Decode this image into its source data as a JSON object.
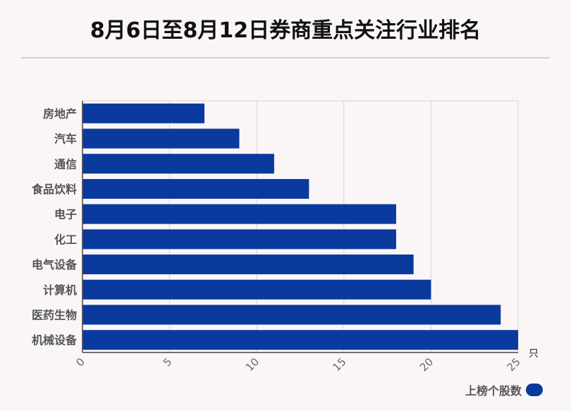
{
  "header": {
    "title": "8月6日至8月12日券商重点关注行业排名"
  },
  "chart_data": {
    "type": "bar",
    "orientation": "horizontal",
    "title": "8月6日至8月12日券商重点关注行业排名",
    "categories": [
      "房地产",
      "汽车",
      "通信",
      "食品饮料",
      "电子",
      "化工",
      "电气设备",
      "计算机",
      "医药生物",
      "机械设备"
    ],
    "series": [
      {
        "name": "上榜个股数",
        "values": [
          7,
          9,
          11,
          13,
          18,
          18,
          19,
          20,
          24,
          25
        ]
      }
    ],
    "xlim": [
      0,
      25
    ],
    "xticks": [
      "0",
      "5",
      "10",
      "15",
      "20",
      "25"
    ],
    "xunit": "只",
    "grid": true,
    "legend_position": "bottom-right",
    "bar_color": "#0b3a9e"
  }
}
